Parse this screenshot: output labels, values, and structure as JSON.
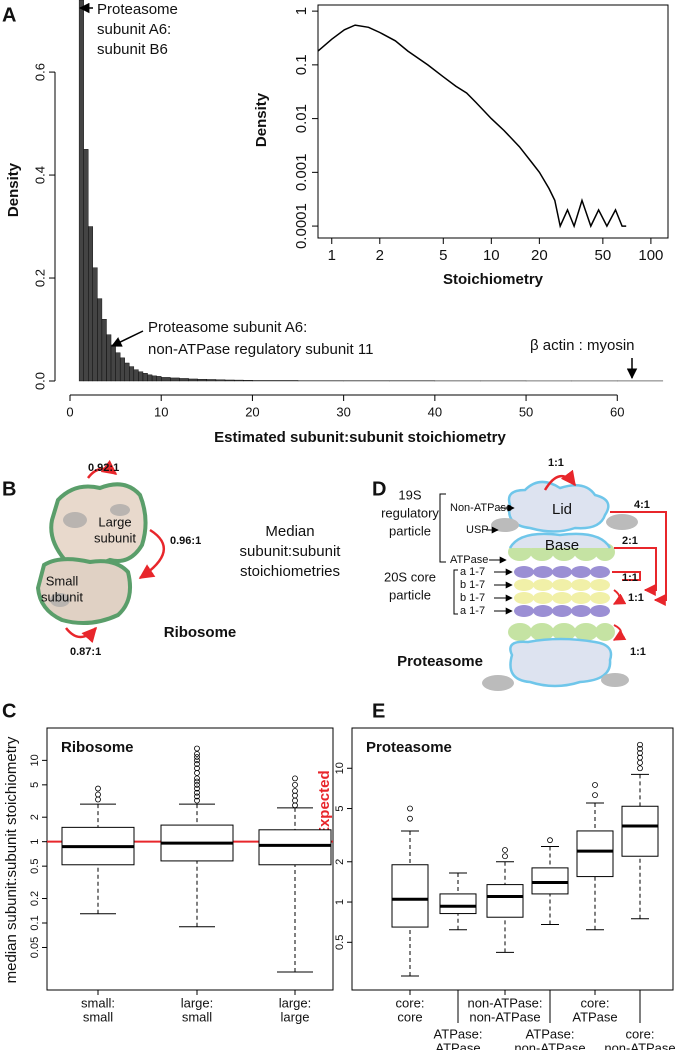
{
  "panel_labels": [
    "A",
    "B",
    "C",
    "D",
    "E"
  ],
  "chart_data": [
    {
      "type": "histogram",
      "xlabel": "Estimated subunit:subunit stoichiometry",
      "ylabel": "Density",
      "bins": [
        1,
        1.5,
        2,
        2.5,
        3,
        3.5,
        4,
        4.5,
        5,
        5.5,
        6,
        6.5,
        7,
        7.5,
        8,
        8.5,
        9,
        9.5,
        10,
        11,
        12,
        13,
        14,
        15,
        16,
        17,
        18,
        19,
        20,
        25,
        30,
        35,
        40,
        45,
        50,
        55,
        60,
        65
      ],
      "counts": [
        0.74,
        0.45,
        0.3,
        0.22,
        0.16,
        0.12,
        0.09,
        0.07,
        0.055,
        0.045,
        0.035,
        0.028,
        0.022,
        0.018,
        0.015,
        0.012,
        0.01,
        0.009,
        0.007,
        0.006,
        0.005,
        0.004,
        0.0035,
        0.003,
        0.0025,
        0.002,
        0.0018,
        0.0015,
        0.001,
        0.0006,
        0.0005,
        0.0004,
        0.0003,
        0.0003,
        0.0002,
        0.0002,
        0.0002
      ],
      "color": "#444444",
      "xlim": [
        0,
        66
      ],
      "xticks": [
        0,
        10,
        20,
        30,
        40,
        50,
        60
      ],
      "ylim": [
        0,
        0.74
      ],
      "yticks": [
        {
          "value": 0,
          "label": "0.0"
        },
        0.2,
        0.4,
        0.6
      ],
      "annotations": [
        {
          "lines": [
            "Proteasome",
            "subunit A6:",
            "subunit B6"
          ]
        },
        {
          "lines": [
            "Proteasome subunit A6:",
            "non-ATPase regulatory subunit 11"
          ]
        },
        {
          "lines": [
            "β actin : myosin"
          ]
        }
      ]
    },
    {
      "type": "line",
      "xlabel": "Stoichiometry",
      "ylabel": "Density",
      "log_x": true,
      "log_y": true,
      "color": "#000000",
      "x": [
        0.82,
        1,
        1.2,
        1.4,
        1.7,
        2,
        2.5,
        3,
        4,
        5,
        6,
        7,
        8,
        10,
        12,
        15,
        18,
        20,
        23,
        25,
        27,
        30,
        33,
        37,
        42,
        47,
        53,
        60,
        66,
        70
      ],
      "y": [
        0.18,
        0.3,
        0.45,
        0.55,
        0.5,
        0.4,
        0.28,
        0.18,
        0.1,
        0.06,
        0.04,
        0.03,
        0.02,
        0.01,
        0.006,
        0.003,
        0.0015,
        0.001,
        0.0005,
        0.0003,
        0.0001,
        0.0002,
        0.0001,
        0.0003,
        0.0001,
        0.0002,
        0.0001,
        0.0002,
        0.0001,
        0.0001
      ],
      "xlim": [
        0.82,
        128
      ],
      "xticks": [
        1,
        2,
        5,
        10,
        20,
        50,
        100
      ],
      "ylim": [
        6e-05,
        1.3
      ],
      "yticks": [
        0.0001,
        0.001,
        0.01,
        0.1,
        1
      ]
    },
    {
      "type": "box",
      "title": "Ribosome",
      "ylabel": "median subunit:subunit stoichiometry",
      "log_y": true,
      "categories": [
        [
          "small:",
          "small"
        ],
        [
          "large:",
          "small"
        ],
        [
          "large:",
          "large"
        ]
      ],
      "boxes": [
        {
          "whislo": 0.13,
          "q1": 0.52,
          "med": 0.87,
          "q3": 1.5,
          "whishi": 2.9,
          "fliers": [
            3.3,
            3.8,
            4.5
          ]
        },
        {
          "whislo": 0.09,
          "q1": 0.58,
          "med": 0.96,
          "q3": 1.6,
          "whishi": 2.9,
          "fliers": [
            3.2,
            3.6,
            4,
            4.5,
            5,
            5.5,
            6,
            7,
            8,
            9,
            10,
            11,
            12,
            14
          ]
        },
        {
          "whislo": 0.025,
          "q1": 0.52,
          "med": 0.9,
          "q3": 1.4,
          "whishi": 2.6,
          "fliers": [
            2.8,
            3.2,
            3.7,
            4.2,
            5,
            6
          ]
        }
      ],
      "ylim": [
        0.015,
        25
      ],
      "yticks": [
        0.05,
        0.1,
        0.2,
        0.5,
        1,
        2,
        5,
        10
      ],
      "reference": {
        "value": 1,
        "label": "Expected",
        "color": "#e8262b"
      }
    },
    {
      "type": "box",
      "title": "Proteasome",
      "log_y": true,
      "categories": [
        [
          "core:",
          "core"
        ],
        [
          "ATPase:",
          "ATPase"
        ],
        [
          "non-ATPase:",
          "non-ATPase"
        ],
        [
          "ATPase:",
          "non-ATPase"
        ],
        [
          "core:",
          "ATPase"
        ],
        [
          "core:",
          "non-ATPase"
        ]
      ],
      "boxes": [
        {
          "whislo": 0.28,
          "q1": 0.65,
          "med": 1.05,
          "q3": 1.9,
          "whishi": 3.4,
          "fliers": [
            4.2,
            5
          ]
        },
        {
          "whislo": 0.62,
          "q1": 0.82,
          "med": 0.93,
          "q3": 1.15,
          "whishi": 1.65,
          "fliers": []
        },
        {
          "whislo": 0.42,
          "q1": 0.77,
          "med": 1.1,
          "q3": 1.35,
          "whishi": 2,
          "fliers": [
            2.2,
            2.45
          ]
        },
        {
          "whislo": 0.68,
          "q1": 1.15,
          "med": 1.4,
          "q3": 1.8,
          "whishi": 2.6,
          "fliers": [
            2.9
          ]
        },
        {
          "whislo": 0.62,
          "q1": 1.55,
          "med": 2.4,
          "q3": 3.4,
          "whishi": 5.5,
          "fliers": [
            6.3,
            7.5
          ]
        },
        {
          "whislo": 0.75,
          "q1": 2.2,
          "med": 3.7,
          "q3": 5.2,
          "whishi": 9,
          "fliers": [
            10,
            11,
            12,
            13,
            14,
            15
          ]
        }
      ],
      "ylim": [
        0.22,
        20
      ],
      "yticks": [
        0.5,
        1,
        2,
        5,
        10
      ]
    }
  ],
  "ribosome": {
    "ratios": [
      "0.92:1",
      "0.96:1",
      "0.87:1"
    ],
    "large": [
      "Large",
      "subunit"
    ],
    "small": [
      "Small",
      "subunit"
    ],
    "name": "Ribosome",
    "caption": [
      "Median",
      "subunit:subunit",
      "stoichiometries"
    ]
  },
  "proteasome": {
    "ratios": [
      "1:1",
      "4:1",
      "2:1",
      "1:1",
      "1:1",
      "1:1"
    ],
    "regulatory": [
      "19S",
      "regulatory",
      "particle"
    ],
    "labels": [
      "Non-ATPase",
      "USP",
      "ATPase"
    ],
    "lid": "Lid",
    "base": "Base",
    "core": [
      "20S core",
      "particle"
    ],
    "rings": [
      "a 1-7",
      "b 1-7",
      "b 1-7",
      "a 1-7"
    ],
    "name": "Proteasome"
  }
}
